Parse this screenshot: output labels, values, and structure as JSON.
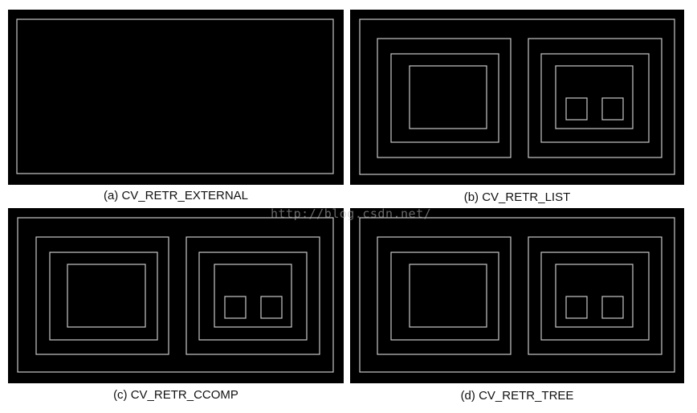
{
  "panels": {
    "a": {
      "caption": "(a) CV_RETR_EXTERNAL"
    },
    "b": {
      "caption": "(b) CV_RETR_LIST"
    },
    "c": {
      "caption": "(c) CV_RETR_CCOMP"
    },
    "d": {
      "caption": "(d) CV_RETR_TREE"
    }
  },
  "watermark": "http://blog.csdn.net/",
  "colors": {
    "background": "#000000",
    "contour": "#c8c8c8",
    "caption": "#111111"
  }
}
